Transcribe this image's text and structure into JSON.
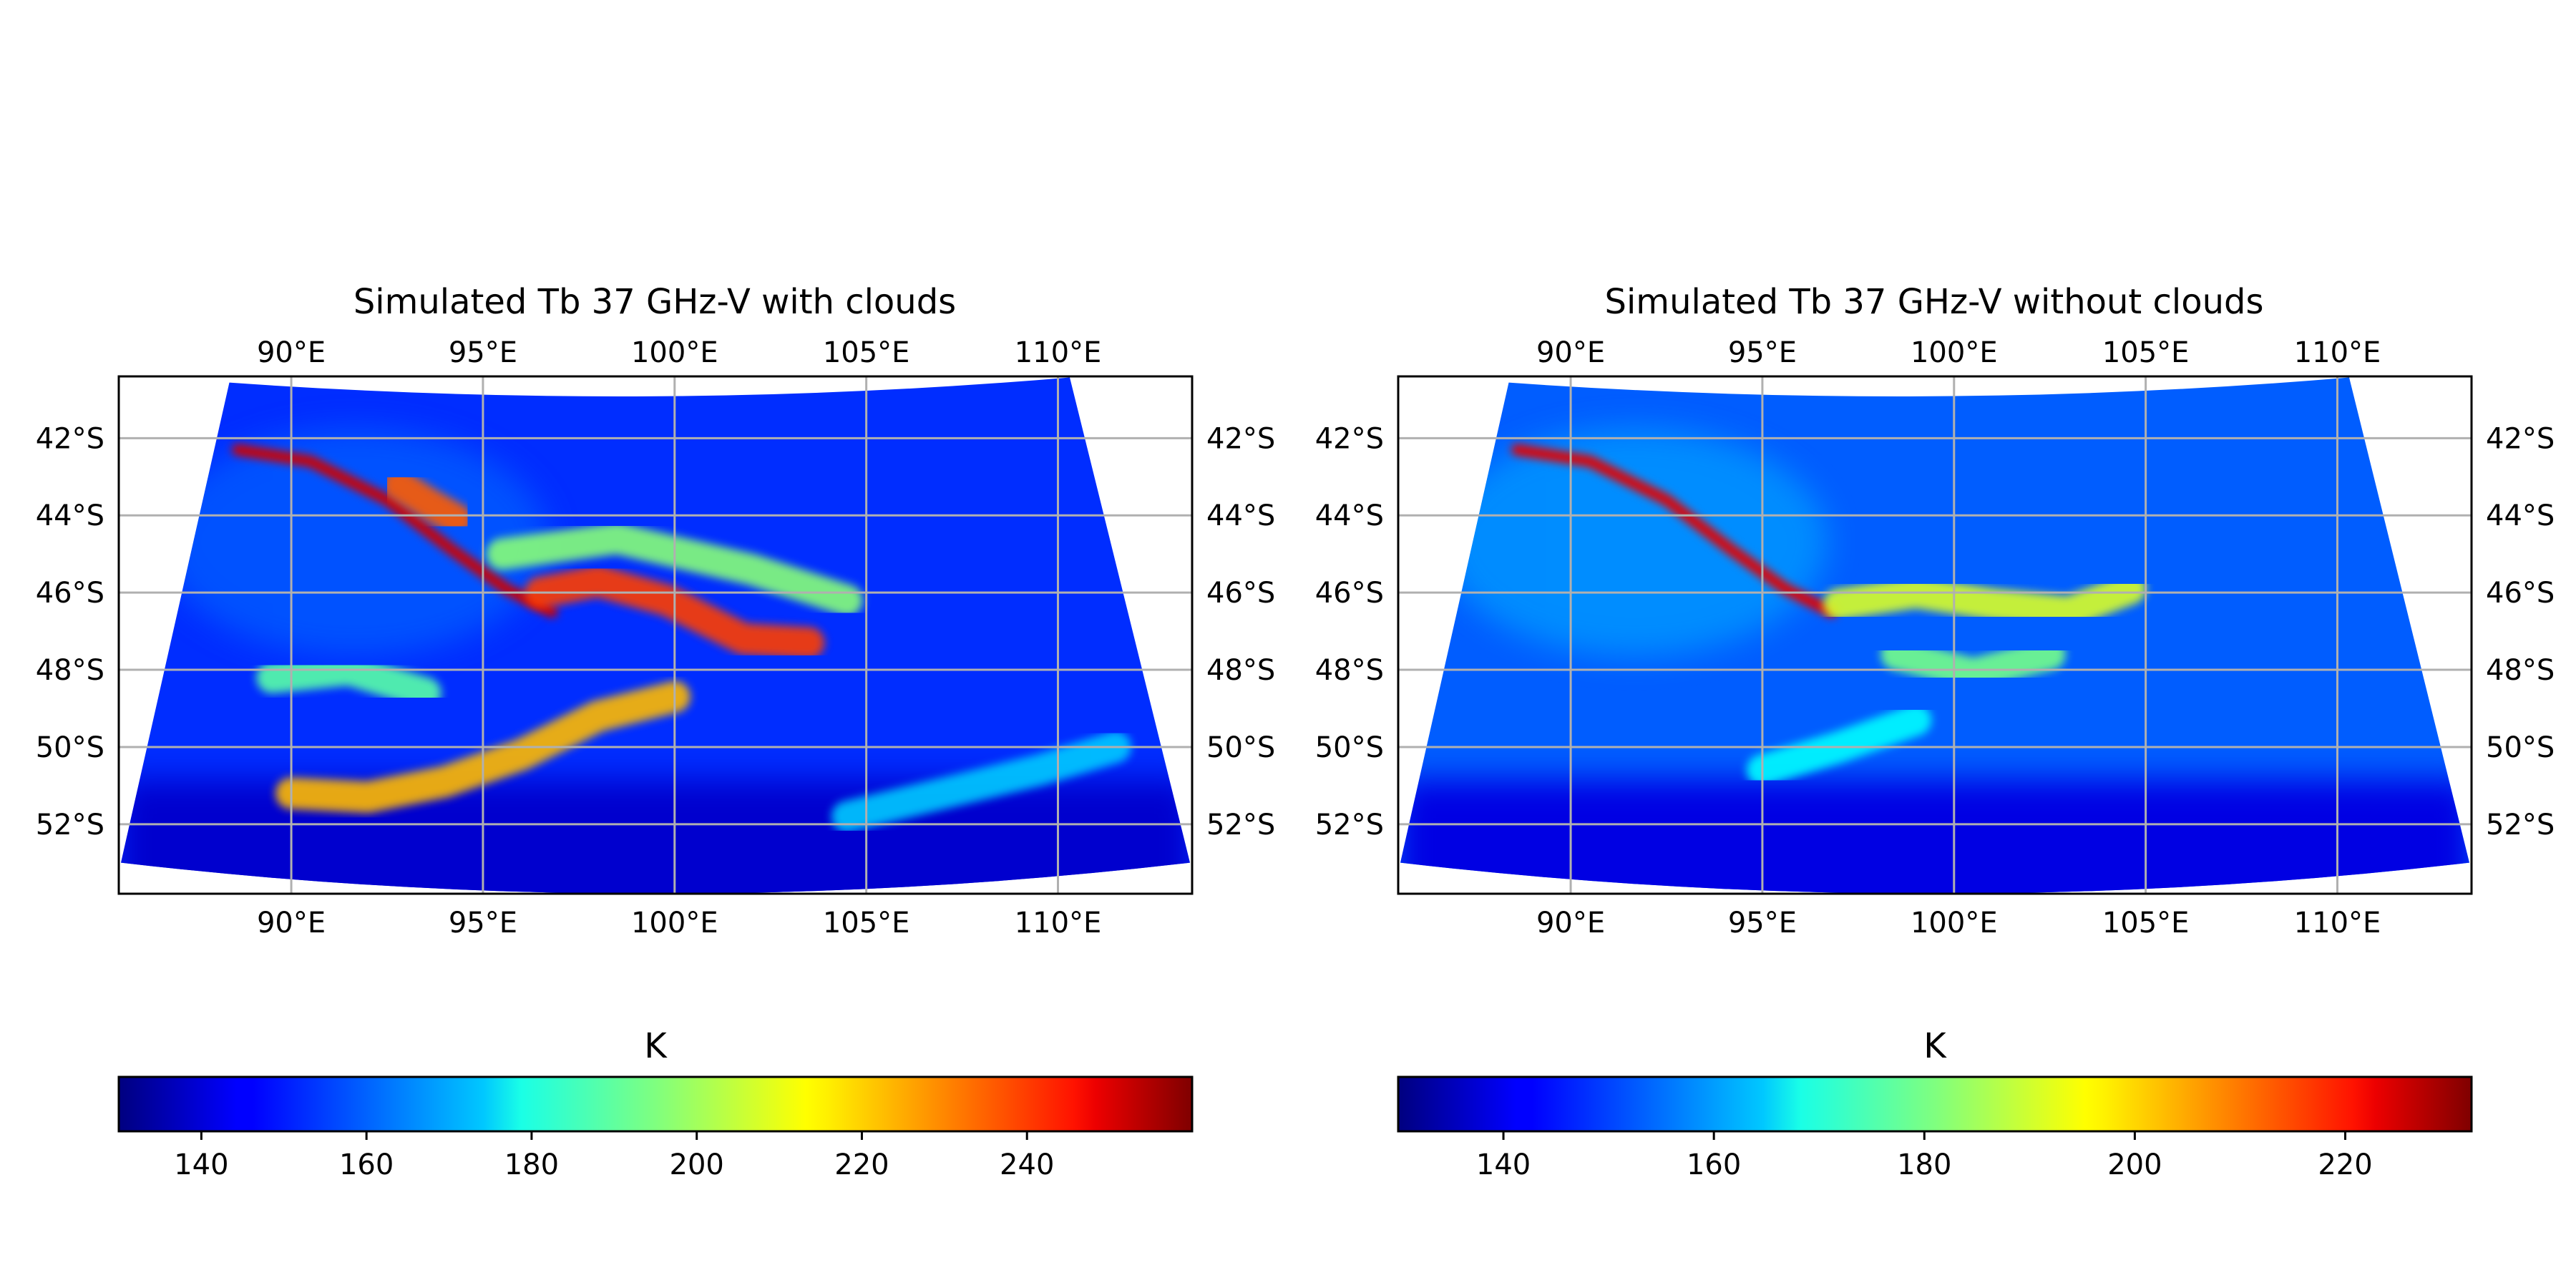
{
  "chart_data": [
    {
      "type": "heatmap",
      "title": "Simulated Tb 37 GHz-V with clouds",
      "x_ticks": [
        "90°E",
        "95°E",
        "100°E",
        "105°E",
        "110°E"
      ],
      "x_tick_values": [
        90,
        95,
        100,
        105,
        110
      ],
      "y_ticks": [
        "42°S",
        "44°S",
        "46°S",
        "48°S",
        "50°S",
        "52°S"
      ],
      "y_tick_values": [
        -42,
        -44,
        -46,
        -48,
        -50,
        -52
      ],
      "xlim": [
        85.5,
        113.5
      ],
      "ylim": [
        -53.8,
        -40.4
      ],
      "grid": true,
      "colormap": "jet",
      "colorbar": {
        "label": "K",
        "ticks": [
          "140",
          "160",
          "180",
          "200",
          "220",
          "240"
        ],
        "tick_values": [
          140,
          160,
          180,
          200,
          220,
          240
        ],
        "range": [
          130,
          260
        ]
      },
      "features": [
        {
          "points": [
            [
              88.6,
              -42.3
            ],
            [
              90.5,
              -42.6
            ],
            [
              92.5,
              -43.6
            ],
            [
              94.2,
              -44.9
            ],
            [
              95.6,
              -45.9
            ],
            [
              96.8,
              -46.5
            ]
          ],
          "value": 250
        },
        {
          "points": [
            [
              92.8,
              -43.2
            ],
            [
              93.6,
              -43.7
            ],
            [
              94.3,
              -44.1
            ]
          ],
          "value": 232
        },
        {
          "points": [
            [
              96.5,
              -46.0
            ],
            [
              98.0,
              -45.7
            ],
            [
              99.8,
              -46.2
            ],
            [
              101.8,
              -47.2
            ],
            [
              103.5,
              -47.3
            ]
          ],
          "value": 236
        },
        {
          "points": [
            [
              90.0,
              -51.2
            ],
            [
              92.0,
              -51.3
            ],
            [
              94.0,
              -50.9
            ],
            [
              96.0,
              -50.2
            ],
            [
              98.0,
              -49.2
            ],
            [
              100.0,
              -48.7
            ]
          ],
          "value": 220
        },
        {
          "points": [
            [
              95.5,
              -45.0
            ],
            [
              98.5,
              -44.6
            ],
            [
              102.0,
              -45.4
            ],
            [
              104.5,
              -46.2
            ]
          ],
          "value": 196
        },
        {
          "points": [
            [
              89.5,
              -48.2
            ],
            [
              91.5,
              -48.0
            ],
            [
              93.5,
              -48.6
            ]
          ],
          "value": 190
        },
        {
          "points": [
            [
              104.5,
              -51.8
            ],
            [
              107.0,
              -51.2
            ],
            [
              109.5,
              -50.6
            ],
            [
              111.5,
              -50.0
            ]
          ],
          "value": 172
        }
      ]
    },
    {
      "type": "heatmap",
      "title": "Simulated Tb 37 GHz-V without clouds",
      "x_ticks": [
        "90°E",
        "95°E",
        "100°E",
        "105°E",
        "110°E"
      ],
      "x_tick_values": [
        90,
        95,
        100,
        105,
        110
      ],
      "y_ticks": [
        "42°S",
        "44°S",
        "46°S",
        "48°S",
        "50°S",
        "52°S"
      ],
      "y_tick_values": [
        -42,
        -44,
        -46,
        -48,
        -50,
        -52
      ],
      "xlim": [
        85.5,
        113.5
      ],
      "ylim": [
        -53.8,
        -40.4
      ],
      "grid": true,
      "colormap": "jet",
      "colorbar": {
        "label": "K",
        "ticks": [
          "140",
          "160",
          "180",
          "200",
          "220"
        ],
        "tick_values": [
          140,
          160,
          180,
          200,
          220
        ],
        "range": [
          130,
          232
        ]
      },
      "features": [
        {
          "points": [
            [
              88.6,
              -42.3
            ],
            [
              90.5,
              -42.6
            ],
            [
              92.5,
              -43.6
            ],
            [
              94.2,
              -44.9
            ],
            [
              95.6,
              -45.9
            ],
            [
              96.8,
              -46.5
            ]
          ],
          "value": 222
        },
        {
          "points": [
            [
              97.0,
              -46.3
            ],
            [
              99.0,
              -46.0
            ],
            [
              101.0,
              -46.3
            ],
            [
              103.0,
              -46.5
            ],
            [
              104.6,
              -45.9
            ]
          ],
          "value": 190
        },
        {
          "points": [
            [
              98.5,
              -47.6
            ],
            [
              100.5,
              -48.1
            ],
            [
              102.5,
              -47.6
            ]
          ],
          "value": 180
        },
        {
          "points": [
            [
              95.0,
              -50.6
            ],
            [
              97.0,
              -50.0
            ],
            [
              99.0,
              -49.3
            ]
          ],
          "value": 168
        }
      ]
    }
  ]
}
